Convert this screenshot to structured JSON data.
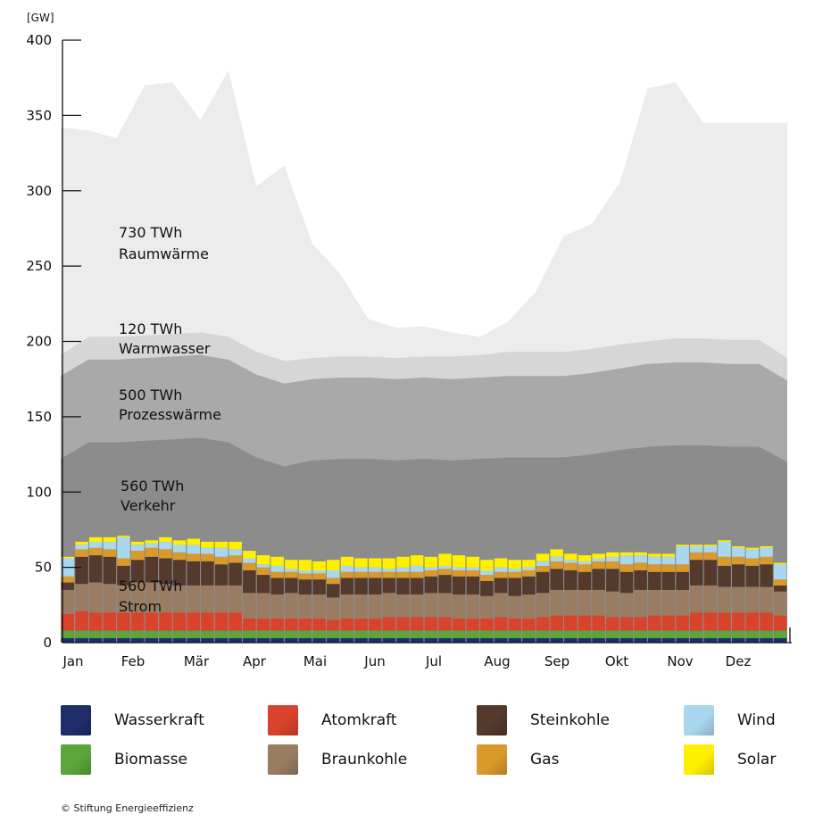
{
  "chart_data": {
    "type": "area",
    "unit_label": "[GW]",
    "ylim": [
      0,
      400
    ],
    "yticks": [
      "0",
      "50",
      "100",
      "150",
      "200",
      "250",
      "300",
      "350",
      "400"
    ],
    "months": [
      "Jan",
      "Feb",
      "Mär",
      "Apr",
      "Mai",
      "Jun",
      "Jul",
      "Aug",
      "Sep",
      "Okt",
      "Nov",
      "Dez"
    ],
    "weeks": 52,
    "areas": [
      {
        "name": "Strom",
        "energy": "560 TWh",
        "color": "#7f7f7f"
      },
      {
        "name": "Verkehr",
        "energy": "560 TWh",
        "color": "#8c8c8c"
      },
      {
        "name": "Prozesswärme",
        "energy": "500 TWh",
        "color": "#a9a9a9"
      },
      {
        "name": "Warmwasser",
        "energy": "120 TWh",
        "color": "#d6d6d6"
      },
      {
        "name": "Raumwärme",
        "energy": "730 TWh",
        "color": "#ececec"
      }
    ],
    "area_labels": [
      {
        "value": "730 TWh",
        "name": "Raumwärme"
      },
      {
        "value": "120 TWh",
        "name": "Warmwasser"
      },
      {
        "value": "500 TWh",
        "name": "Prozesswärme"
      },
      {
        "value": "560 TWh",
        "name": "Verkehr"
      },
      {
        "value": "560 TWh",
        "name": "Strom"
      }
    ],
    "cumulative": {
      "x": [
        0,
        2,
        4,
        6,
        8,
        10,
        12,
        14,
        16,
        18,
        20,
        22,
        24,
        26,
        28,
        30,
        32,
        34,
        36,
        38,
        40,
        42,
        44,
        46,
        48,
        50,
        52
      ],
      "Verkehr": [
        122,
        133,
        133,
        134,
        135,
        136,
        133,
        123,
        117,
        121,
        122,
        122,
        121,
        122,
        121,
        122,
        123,
        123,
        123,
        125,
        128,
        130,
        131,
        131,
        130,
        130,
        120
      ],
      "Prozesswärme": [
        177,
        188,
        188,
        189,
        190,
        191,
        188,
        178,
        172,
        175,
        176,
        176,
        175,
        176,
        175,
        176,
        177,
        177,
        177,
        179,
        182,
        185,
        186,
        186,
        185,
        185,
        174
      ],
      "Warmwasser": [
        191,
        203,
        203,
        204,
        205,
        206,
        203,
        193,
        187,
        189,
        190,
        190,
        189,
        190,
        190,
        191,
        193,
        193,
        193,
        195,
        198,
        200,
        202,
        202,
        201,
        201,
        189
      ],
      "Raumwärme": [
        342,
        340,
        335,
        370,
        372,
        347,
        380,
        303,
        317,
        265,
        245,
        215,
        209,
        210,
        206,
        203,
        213,
        233,
        270,
        278,
        305,
        368,
        372,
        345,
        345,
        345,
        345
      ]
    },
    "strom_stack": {
      "sources": [
        {
          "name": "Wasserkraft",
          "color": "#1f2d6b"
        },
        {
          "name": "Biomasse",
          "color": "#5aa63a"
        },
        {
          "name": "Atomkraft",
          "color": "#d9432b"
        },
        {
          "name": "Braunkohle",
          "color": "#9a7c62"
        },
        {
          "name": "Steinkohle",
          "color": "#54392d"
        },
        {
          "name": "Gas",
          "color": "#d99a2b"
        },
        {
          "name": "Wind",
          "color": "#a9d7f0"
        },
        {
          "name": "Solar",
          "color": "#fff000"
        }
      ],
      "weekly": {
        "Wasserkraft": [
          3,
          3,
          3,
          3,
          3,
          3,
          3,
          3,
          3,
          3,
          3,
          3,
          3,
          3,
          3,
          3,
          3,
          3,
          3,
          3,
          3,
          3,
          3,
          3,
          3,
          3,
          3,
          3,
          3,
          3,
          3,
          3,
          3,
          3,
          3,
          3,
          3,
          3,
          3,
          3,
          3,
          3,
          3,
          3,
          3,
          3,
          3,
          3,
          3,
          3,
          3,
          3
        ],
        "Biomasse": [
          5,
          5,
          5,
          5,
          5,
          5,
          5,
          5,
          5,
          5,
          5,
          5,
          5,
          5,
          5,
          5,
          5,
          5,
          5,
          5,
          5,
          5,
          5,
          5,
          5,
          5,
          5,
          5,
          5,
          5,
          5,
          5,
          5,
          5,
          5,
          5,
          5,
          5,
          5,
          5,
          5,
          5,
          5,
          5,
          5,
          5,
          5,
          5,
          5,
          5,
          5,
          5
        ],
        "Atomkraft": [
          11,
          13,
          12,
          12,
          12,
          12,
          12,
          12,
          12,
          12,
          12,
          12,
          12,
          8,
          8,
          8,
          8,
          8,
          8,
          7,
          8,
          8,
          8,
          9,
          9,
          9,
          9,
          9,
          8,
          8,
          8,
          9,
          8,
          8,
          9,
          10,
          10,
          10,
          10,
          9,
          9,
          9,
          10,
          10,
          10,
          12,
          12,
          12,
          12,
          12,
          12,
          10
        ],
        "Braunkohle": [
          16,
          18,
          20,
          19,
          18,
          20,
          20,
          19,
          18,
          18,
          18,
          18,
          18,
          17,
          17,
          16,
          17,
          16,
          16,
          15,
          16,
          16,
          16,
          16,
          15,
          15,
          16,
          16,
          16,
          16,
          15,
          16,
          15,
          16,
          16,
          17,
          17,
          17,
          17,
          17,
          16,
          18,
          17,
          17,
          17,
          18,
          18,
          17,
          17,
          17,
          17,
          16
        ],
        "Steinkohle": [
          5,
          18,
          18,
          18,
          13,
          15,
          17,
          17,
          17,
          16,
          16,
          14,
          15,
          15,
          12,
          11,
          10,
          10,
          10,
          9,
          11,
          11,
          11,
          10,
          11,
          11,
          11,
          12,
          12,
          12,
          10,
          10,
          12,
          12,
          14,
          14,
          13,
          12,
          14,
          15,
          14,
          13,
          12,
          12,
          12,
          17,
          17,
          14,
          15,
          14,
          15,
          4
        ],
        "Gas": [
          4,
          5,
          5,
          5,
          5,
          6,
          6,
          6,
          5,
          5,
          5,
          5,
          5,
          5,
          5,
          4,
          4,
          4,
          4,
          4,
          4,
          4,
          4,
          4,
          4,
          4,
          4,
          4,
          4,
          4,
          4,
          4,
          4,
          4,
          4,
          5,
          5,
          5,
          5,
          5,
          5,
          5,
          5,
          5,
          5,
          5,
          5,
          6,
          5,
          5,
          5,
          4
        ],
        "Wind": [
          12,
          3,
          4,
          5,
          14,
          4,
          3,
          5,
          5,
          6,
          4,
          6,
          4,
          3,
          2,
          4,
          2,
          2,
          2,
          5,
          4,
          3,
          3,
          2,
          3,
          4,
          2,
          2,
          2,
          2,
          3,
          3,
          2,
          2,
          3,
          3,
          2,
          2,
          2,
          3,
          6,
          5,
          5,
          5,
          12,
          4,
          4,
          10,
          6,
          6,
          6,
          10
        ],
        "Solar": [
          1,
          2,
          3,
          3,
          1,
          2,
          2,
          3,
          3,
          4,
          4,
          4,
          5,
          5,
          6,
          6,
          6,
          7,
          6,
          7,
          6,
          6,
          6,
          7,
          7,
          7,
          7,
          8,
          8,
          7,
          7,
          6,
          6,
          5,
          5,
          5,
          4,
          4,
          3,
          3,
          2,
          2,
          2,
          2,
          1,
          1,
          1,
          1,
          1,
          1,
          1,
          1
        ]
      }
    }
  },
  "legend": [
    {
      "label": "Wasserkraft",
      "color": "#1f2d6b"
    },
    {
      "label": "Atomkraft",
      "color": "#d9432b"
    },
    {
      "label": "Steinkohle",
      "color": "#54392d"
    },
    {
      "label": "Wind",
      "color": "#a9d7f0"
    },
    {
      "label": "Biomasse",
      "color": "#5aa63a"
    },
    {
      "label": "Braunkohle",
      "color": "#9a7c62"
    },
    {
      "label": "Gas",
      "color": "#d99a2b"
    },
    {
      "label": "Solar",
      "color": "#fff000"
    }
  ],
  "copyright": "© Stiftung Energieeffizienz"
}
